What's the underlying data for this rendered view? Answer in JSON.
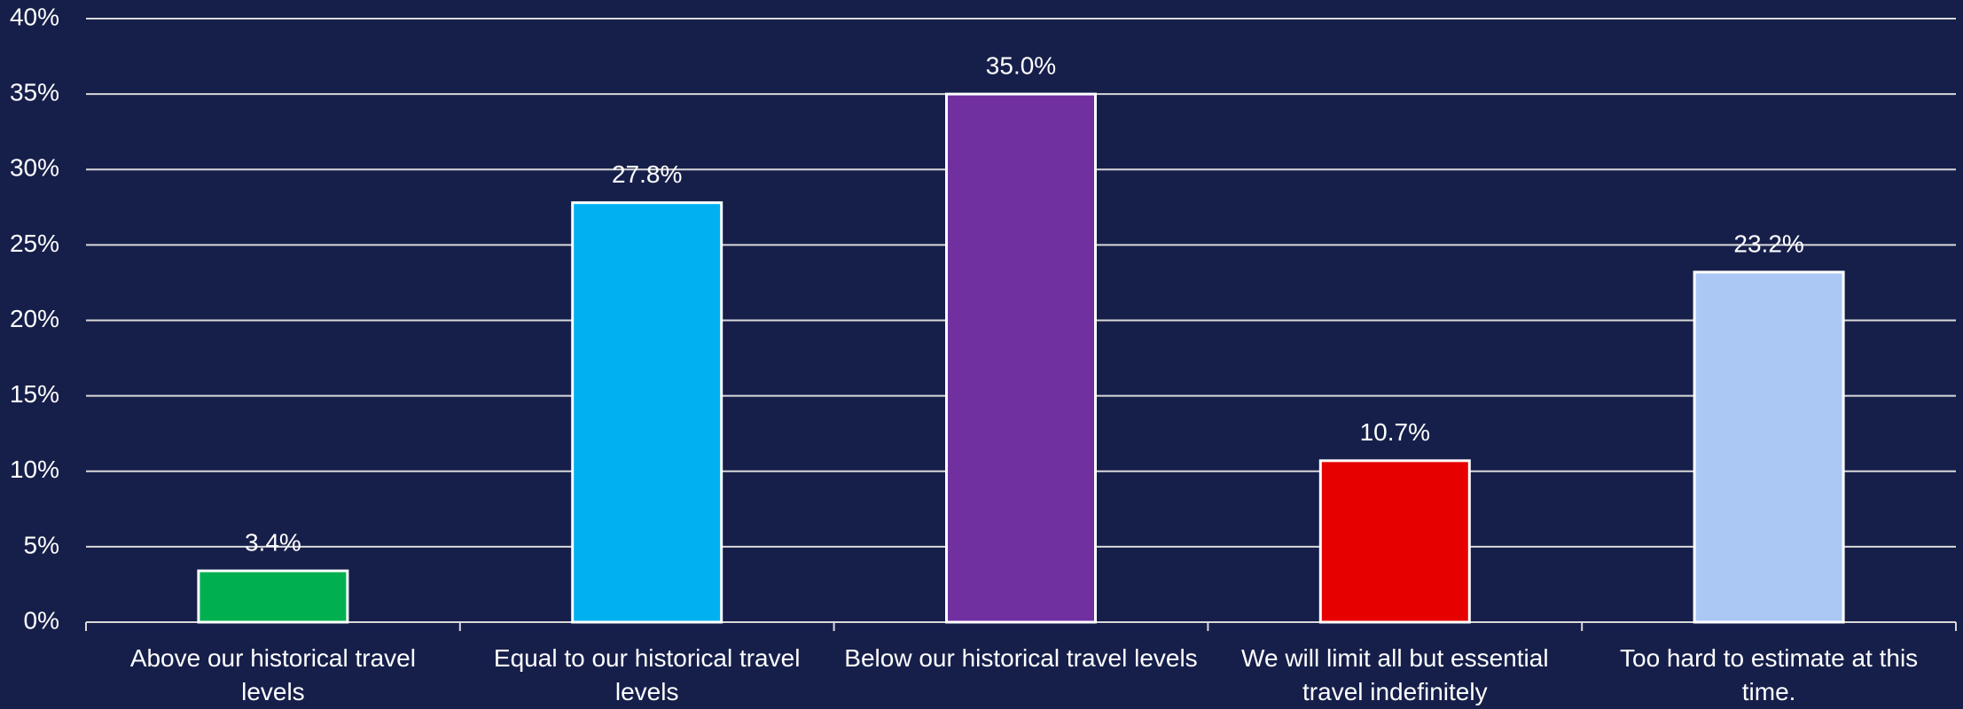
{
  "chart_data": {
    "type": "bar",
    "categories": [
      "Above our historical travel levels",
      "Equal to our historical travel levels",
      "Below our historical travel levels",
      "We will limit all but essential travel indefinitely",
      "Too hard to estimate at this time."
    ],
    "values": [
      3.4,
      27.8,
      35.0,
      10.7,
      23.2
    ],
    "value_labels": [
      "3.4%",
      "27.8%",
      "35.0%",
      "10.7%",
      "23.2%"
    ],
    "colors": [
      "#00b050",
      "#00b0f0",
      "#7030a0",
      "#e60000",
      "#abc8f5"
    ],
    "ylim": [
      0,
      40
    ],
    "yticks": [
      {
        "value": 0,
        "label": "0%"
      },
      {
        "value": 5,
        "label": "5%"
      },
      {
        "value": 10,
        "label": "10%"
      },
      {
        "value": 15,
        "label": "15%"
      },
      {
        "value": 20,
        "label": "20%"
      },
      {
        "value": 25,
        "label": "25%"
      },
      {
        "value": 30,
        "label": "30%"
      },
      {
        "value": 35,
        "label": "35%"
      },
      {
        "value": 40,
        "label": "40%"
      }
    ],
    "grid": true
  }
}
